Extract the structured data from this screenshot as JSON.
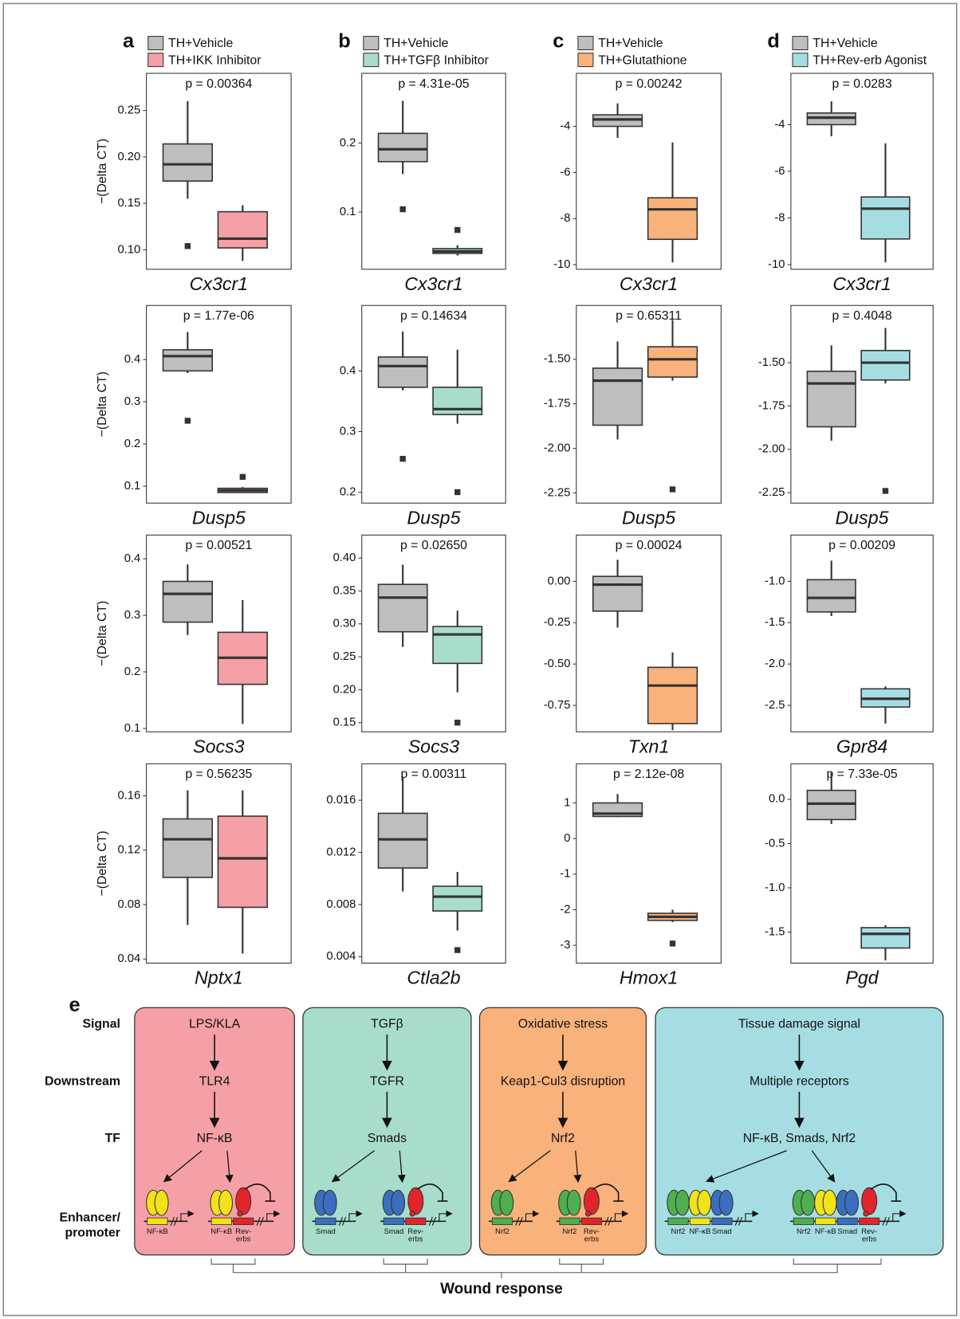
{
  "chart_data": [
    {
      "type": "box",
      "panel": "a",
      "title": "p = 0.00364",
      "x_label": "Cx3cr1",
      "y_label": "−(Delta CT)",
      "ylim": [
        0.079,
        0.29
      ],
      "yticks": [
        {
          "value": 0.1,
          "label": "0.10"
        },
        0.15,
        {
          "value": 0.2,
          "label": "0.20"
        },
        0.25
      ],
      "series": [
        {
          "name": "TH+Vehicle",
          "color": "#bebebe",
          "whislo": 0.155,
          "q1": 0.174,
          "median": 0.192,
          "q3": 0.214,
          "whishi": 0.26,
          "outliers": [
            0.104
          ]
        },
        {
          "name": "TH+IKK Inhibitor",
          "color": "#f4a0a6",
          "whislo": 0.088,
          "q1": 0.102,
          "median": 0.112,
          "q3": 0.141,
          "whishi": 0.148,
          "outliers": []
        }
      ]
    },
    {
      "type": "box",
      "panel": "b",
      "title": "p = 4.31e-05",
      "x_label": "Cx3cr1",
      "ylim": [
        0.017,
        0.301
      ],
      "yticks": [
        0.1,
        0.2
      ],
      "series": [
        {
          "name": "TH+Vehicle",
          "color": "#bebebe",
          "whislo": 0.155,
          "q1": 0.173,
          "median": 0.191,
          "q3": 0.214,
          "whishi": 0.261,
          "outliers": [
            0.104
          ]
        },
        {
          "name": "TH+TGFβ Inhibitor",
          "color": "#a8ddcb",
          "whislo": 0.037,
          "q1": 0.04,
          "median": 0.043,
          "q3": 0.047,
          "whishi": 0.052,
          "outliers": [
            0.074
          ]
        }
      ]
    },
    {
      "type": "box",
      "panel": "c",
      "title": "p = 0.00242",
      "x_label": "Cx3cr1",
      "ylim": [
        -10.2,
        -1.7
      ],
      "yticks": [
        -10,
        -8,
        -6,
        -4
      ],
      "series": [
        {
          "name": "TH+Vehicle",
          "color": "#bebebe",
          "whislo": -4.5,
          "q1": -4.0,
          "median": -3.7,
          "q3": -3.5,
          "whishi": -3.0,
          "outliers": []
        },
        {
          "name": "TH+Glutathione",
          "color": "#f9b27b",
          "whislo": -9.9,
          "q1": -8.9,
          "median": -7.6,
          "q3": -7.1,
          "whishi": -4.7,
          "outliers": []
        }
      ]
    },
    {
      "type": "box",
      "panel": "d",
      "title": "p = 0.0283",
      "x_label": "Cx3cr1",
      "ylim": [
        -10.2,
        -1.8
      ],
      "yticks": [
        -10,
        -8,
        -6,
        -4
      ],
      "series": [
        {
          "name": "TH+Vehicle",
          "color": "#bebebe",
          "whislo": -4.5,
          "q1": -4.0,
          "median": -3.7,
          "q3": -3.5,
          "whishi": -3.0,
          "outliers": []
        },
        {
          "name": "TH+Rev-erb Agonist",
          "color": "#a6dde3",
          "whislo": -9.9,
          "q1": -8.9,
          "median": -7.6,
          "q3": -7.1,
          "whishi": -4.8,
          "outliers": []
        }
      ]
    },
    {
      "type": "box",
      "title": "p = 1.77e-06",
      "x_label": "Dusp5",
      "y_label": "−(Delta CT)",
      "ylim": [
        0.06,
        0.528
      ],
      "yticks": [
        0.1,
        0.2,
        0.3,
        0.4
      ],
      "series": [
        {
          "color": "#bebebe",
          "whislo": 0.368,
          "q1": 0.373,
          "median": 0.408,
          "q3": 0.423,
          "whishi": 0.465,
          "outliers": [
            0.255
          ]
        },
        {
          "color": "#f4a0a6",
          "whislo": 0.085,
          "q1": 0.085,
          "median": 0.09,
          "q3": 0.095,
          "whishi": 0.098,
          "outliers": [
            0.122
          ]
        }
      ]
    },
    {
      "type": "box",
      "title": "p = 0.14634",
      "x_label": "Dusp5",
      "ylim": [
        0.182,
        0.508
      ],
      "yticks": [
        0.2,
        0.3,
        0.4
      ],
      "series": [
        {
          "color": "#bebebe",
          "whislo": 0.368,
          "q1": 0.373,
          "median": 0.408,
          "q3": 0.423,
          "whishi": 0.465,
          "outliers": [
            0.255
          ]
        },
        {
          "color": "#a8ddcb",
          "whislo": 0.313,
          "q1": 0.328,
          "median": 0.337,
          "q3": 0.373,
          "whishi": 0.435,
          "outliers": [
            0.2
          ]
        }
      ]
    },
    {
      "type": "box",
      "title": "p = 0.65311",
      "x_label": "Dusp5",
      "ylim": [
        -2.307,
        -1.198
      ],
      "yticks": [
        -2.25,
        {
          "value": -2.0,
          "label": "-2.00"
        },
        -1.75,
        {
          "value": -1.5,
          "label": "-1.50"
        }
      ],
      "series": [
        {
          "color": "#bebebe",
          "whislo": -1.95,
          "q1": -1.87,
          "median": -1.62,
          "q3": -1.55,
          "whishi": -1.4,
          "outliers": []
        },
        {
          "color": "#f9b27b",
          "whislo": -1.62,
          "q1": -1.6,
          "median": -1.5,
          "q3": -1.43,
          "whishi": -1.28,
          "outliers": [
            -2.23
          ]
        }
      ]
    },
    {
      "type": "box",
      "title": "p = 0.4048",
      "x_label": "Dusp5",
      "ylim": [
        -2.31,
        -1.17
      ],
      "yticks": [
        -2.25,
        {
          "value": -2.0,
          "label": "-2.00"
        },
        -1.75,
        {
          "value": -1.5,
          "label": "-1.50"
        }
      ],
      "series": [
        {
          "color": "#bebebe",
          "whislo": -1.95,
          "q1": -1.87,
          "median": -1.62,
          "q3": -1.55,
          "whishi": -1.4,
          "outliers": []
        },
        {
          "color": "#a6dde3",
          "whislo": -1.62,
          "q1": -1.6,
          "median": -1.5,
          "q3": -1.43,
          "whishi": -1.3,
          "outliers": [
            -2.24
          ]
        }
      ]
    },
    {
      "type": "box",
      "title": "p = 0.00521",
      "x_label": "Socs3",
      "y_label": "−(Delta CT)",
      "ylim": [
        0.094,
        0.442
      ],
      "yticks": [
        0.1,
        0.2,
        0.3,
        0.4
      ],
      "series": [
        {
          "color": "#bebebe",
          "whislo": 0.265,
          "q1": 0.288,
          "median": 0.338,
          "q3": 0.36,
          "whishi": 0.39,
          "outliers": []
        },
        {
          "color": "#f4a0a6",
          "whislo": 0.108,
          "q1": 0.178,
          "median": 0.225,
          "q3": 0.27,
          "whishi": 0.327,
          "outliers": []
        }
      ]
    },
    {
      "type": "box",
      "title": "p = 0.02650",
      "x_label": "Socs3",
      "ylim": [
        0.136,
        0.435
      ],
      "yticks": [
        0.15,
        {
          "value": 0.2,
          "label": "0.20"
        },
        0.25,
        {
          "value": 0.3,
          "label": "0.30"
        },
        0.35,
        {
          "value": 0.4,
          "label": "0.40"
        }
      ],
      "series": [
        {
          "color": "#bebebe",
          "whislo": 0.265,
          "q1": 0.288,
          "median": 0.34,
          "q3": 0.36,
          "whishi": 0.39,
          "outliers": []
        },
        {
          "color": "#a8ddcb",
          "whislo": 0.196,
          "q1": 0.24,
          "median": 0.284,
          "q3": 0.296,
          "whishi": 0.32,
          "outliers": [
            0.15
          ]
        }
      ]
    },
    {
      "type": "box",
      "title": "p = 0.00024",
      "x_label": "Txn1",
      "ylim": [
        -0.91,
        0.28
      ],
      "yticks": [
        -0.75,
        {
          "value": -0.5,
          "label": "-0.50"
        },
        -0.25,
        {
          "value": 0,
          "label": "0.00"
        }
      ],
      "series": [
        {
          "color": "#bebebe",
          "whislo": -0.28,
          "q1": -0.18,
          "median": -0.02,
          "q3": 0.03,
          "whishi": 0.13,
          "outliers": []
        },
        {
          "color": "#f9b27b",
          "whislo": -0.9,
          "q1": -0.86,
          "median": -0.63,
          "q3": -0.52,
          "whishi": -0.43,
          "outliers": []
        }
      ]
    },
    {
      "type": "box",
      "title": "p = 0.00209",
      "x_label": "Gpr84",
      "ylim": [
        -2.82,
        -0.44
      ],
      "yticks": [
        -2.5,
        {
          "value": -2.0,
          "label": "-2.0"
        },
        -1.5,
        {
          "value": -1.0,
          "label": "-1.0"
        }
      ],
      "series": [
        {
          "color": "#bebebe",
          "whislo": -1.42,
          "q1": -1.37,
          "median": -1.2,
          "q3": -0.98,
          "whishi": -0.75,
          "outliers": []
        },
        {
          "color": "#a6dde3",
          "whislo": -2.72,
          "q1": -2.52,
          "median": -2.42,
          "q3": -2.3,
          "whishi": -2.27,
          "outliers": []
        }
      ]
    },
    {
      "type": "box",
      "title": "p = 0.56235",
      "x_label": "Nptx1",
      "y_label": "−(Delta CT)",
      "ylim": [
        0.037,
        0.1835
      ],
      "yticks": [
        0.04,
        0.08,
        0.12,
        0.16
      ],
      "series": [
        {
          "color": "#bebebe",
          "whislo": 0.065,
          "q1": 0.1,
          "median": 0.128,
          "q3": 0.143,
          "whishi": 0.164,
          "outliers": []
        },
        {
          "color": "#f4a0a6",
          "whislo": 0.044,
          "q1": 0.078,
          "median": 0.114,
          "q3": 0.145,
          "whishi": 0.164,
          "outliers": []
        }
      ]
    },
    {
      "type": "box",
      "title": "p = 0.00311",
      "x_label": "Ctla2b",
      "ylim": [
        0.0035,
        0.0188
      ],
      "yticks": [
        0.004,
        0.008,
        0.012,
        0.016
      ],
      "series": [
        {
          "color": "#bebebe",
          "whislo": 0.009,
          "q1": 0.0108,
          "median": 0.013,
          "q3": 0.015,
          "whishi": 0.0178,
          "outliers": []
        },
        {
          "color": "#a8ddcb",
          "whislo": 0.006,
          "q1": 0.0075,
          "median": 0.0086,
          "q3": 0.0094,
          "whishi": 0.0105,
          "outliers": [
            0.0045
          ]
        }
      ]
    },
    {
      "type": "box",
      "title": "p = 2.12e-08",
      "x_label": "Hmox1",
      "ylim": [
        -3.5,
        2.1
      ],
      "yticks": [
        -3,
        -2,
        -1,
        0,
        1
      ],
      "series": [
        {
          "color": "#bebebe",
          "whislo": 0.6,
          "q1": 0.62,
          "median": 0.7,
          "q3": 1.0,
          "whishi": 1.25,
          "outliers": []
        },
        {
          "color": "#f9b27b",
          "whislo": -2.35,
          "q1": -2.3,
          "median": -2.2,
          "q3": -2.1,
          "whishi": -2.0,
          "outliers": [
            -2.95
          ]
        }
      ]
    },
    {
      "type": "box",
      "title": "p = 7.33e-05",
      "x_label": "Pgd",
      "ylim": [
        -1.85,
        0.4
      ],
      "yticks": [
        -1.5,
        {
          "value": -1.0,
          "label": "-1.0"
        },
        -0.5,
        {
          "value": 0,
          "label": "0.0"
        }
      ],
      "series": [
        {
          "color": "#bebebe",
          "whislo": -0.28,
          "q1": -0.23,
          "median": -0.05,
          "q3": 0.1,
          "whishi": 0.3,
          "outliers": []
        },
        {
          "color": "#a6dde3",
          "whislo": -1.82,
          "q1": -1.68,
          "median": -1.52,
          "q3": -1.45,
          "whishi": -1.42,
          "outliers": []
        }
      ]
    }
  ],
  "diagram": {
    "panel": "e",
    "row_labels": [
      "Signal",
      "Downstream",
      "TF"
    ],
    "row_label_enhancer": [
      "Enhancer/",
      "promoter"
    ],
    "footer": "Wound response",
    "columns": [
      {
        "color": "#f4a0a6",
        "signal": "LPS/KLA",
        "downstream": "TLR4",
        "tf": "NF-κB",
        "left_sites": [
          {
            "lines": [
              "NF-κB"
            ],
            "color": "#f2e21a"
          }
        ],
        "right_sites": [
          {
            "lines": [
              "NF-κB"
            ],
            "color": "#f2e21a"
          },
          {
            "lines": [
              "Rev-",
              "erbs"
            ],
            "color": "#e0262b"
          }
        ]
      },
      {
        "color": "#a8ddcb",
        "signal": "TGFβ",
        "downstream": "TGFR",
        "tf": "Smads",
        "left_sites": [
          {
            "lines": [
              "Smad"
            ],
            "color": "#3a6fbf"
          }
        ],
        "right_sites": [
          {
            "lines": [
              "Smad"
            ],
            "color": "#3a6fbf"
          },
          {
            "lines": [
              "Rev-",
              "erbs"
            ],
            "color": "#e0262b"
          }
        ]
      },
      {
        "color": "#f9b27b",
        "signal": "Oxidative stress",
        "downstream": "Keap1-Cul3 disruption",
        "tf": "Nrf2",
        "left_sites": [
          {
            "lines": [
              "Nrf2"
            ],
            "color": "#4fae4f"
          }
        ],
        "right_sites": [
          {
            "lines": [
              "Nrf2"
            ],
            "color": "#4fae4f"
          },
          {
            "lines": [
              "Rev-",
              "erbs"
            ],
            "color": "#e0262b"
          }
        ]
      },
      {
        "color": "#a6dde3",
        "signal": "Tissue damage signal",
        "downstream": "Multiple receptors",
        "tf": "NF-κB, Smads, Nrf2",
        "left_sites": [
          {
            "lines": [
              "Nrf2"
            ],
            "color": "#4fae4f"
          },
          {
            "lines": [
              "NF-κB"
            ],
            "color": "#f2e21a"
          },
          {
            "lines": [
              "Smad"
            ],
            "color": "#3a6fbf"
          }
        ],
        "right_sites": [
          {
            "lines": [
              "Nrf2"
            ],
            "color": "#4fae4f"
          },
          {
            "lines": [
              "NF-κB"
            ],
            "color": "#f2e21a"
          },
          {
            "lines": [
              "Smad"
            ],
            "color": "#3a6fbf"
          },
          {
            "lines": [
              "Rev-",
              "erbs"
            ],
            "color": "#e0262b"
          }
        ]
      }
    ]
  }
}
